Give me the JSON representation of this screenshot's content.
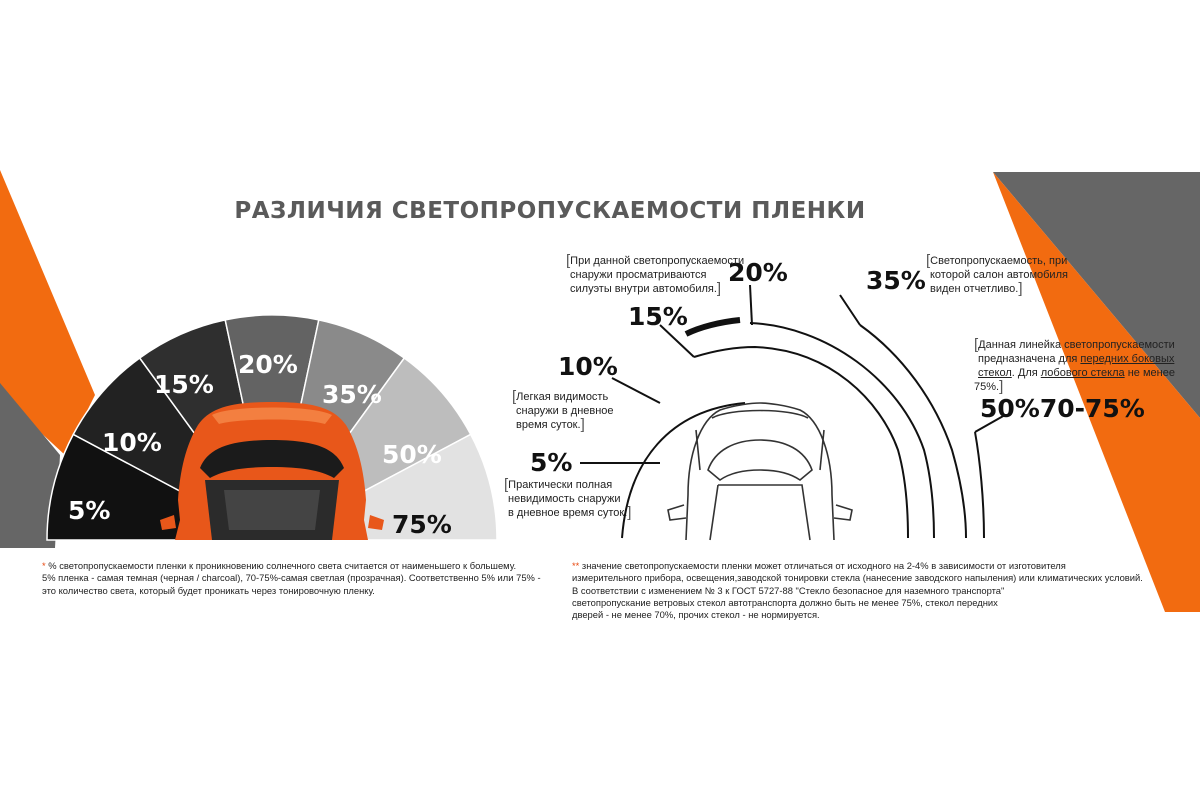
{
  "title": "РАЗЛИЧИЯ СВЕТОПРОПУСКАЕМОСТИ ПЛЕНКИ",
  "colors": {
    "accent_orange": "#f26b10",
    "accent_gray": "#666666",
    "title_gray": "#5a5a5a",
    "segment_5": "#111111",
    "segment_10": "#222222",
    "segment_15": "#2f2f2f",
    "segment_20": "#636363",
    "segment_35": "#8a8a8a",
    "segment_50": "#bdbdbd",
    "segment_75": "#e2e2e2"
  },
  "fan": {
    "segments": [
      {
        "label": "5%",
        "value": 5
      },
      {
        "label": "10%",
        "value": 10
      },
      {
        "label": "15%",
        "value": 15
      },
      {
        "label": "20%",
        "value": 20
      },
      {
        "label": "35%",
        "value": 35
      },
      {
        "label": "50%",
        "value": 50
      },
      {
        "label": "75%",
        "value": 75
      }
    ],
    "car_image": "orange-car-top-view"
  },
  "diagram": {
    "car_image": "car-outline-top-view",
    "levels": {
      "p5": "5%",
      "p10": "10%",
      "p15": "15%",
      "p20": "20%",
      "p35": "35%",
      "p50_75": "50%70-75%"
    },
    "notes": {
      "n20": {
        "line1": "При данной светопропускаемости",
        "line2": "снаружи просматриваются",
        "line3": "силуэты внутри автомобиля."
      },
      "n35": {
        "line1": "Светопропускаемость, при",
        "line2": "которой салон автомобиля",
        "line3": "виден отчетливо."
      },
      "n50": {
        "line1": "Данная линейка светопропускаемости",
        "line2_a": "предназначена для ",
        "line2_u": "передних боковых",
        "line3_u1": "стекол",
        "line3_b": ". Для ",
        "line3_u2": "лобового стекла",
        "line3_c": " не менее 75%."
      },
      "n10": {
        "line1": "Легкая видимость",
        "line2": "снаружи в дневное",
        "line3": "время суток."
      },
      "n5": {
        "line1": "Практически полная",
        "line2": "невидимость снаружи",
        "line3": "в дневное время суток."
      }
    }
  },
  "footnotes": {
    "left": {
      "star": "*",
      "line1": " % светопропускаемости пленки к проникновению солнечного света считается от наименьшего к большему.",
      "line2": "5% пленка - самая темная (черная / charcoal), 70-75%-самая светлая (прозрачная). Соответственно 5% или 75% -",
      "line3": "это количество света, который будет проникать через тонировочную пленку."
    },
    "right": {
      "star": "**",
      "line1": " значение светопропускаемости пленки может отличаться от исходного на 2-4% в зависимости от изготовителя",
      "line2": "измерительного прибора, освещения,заводской тонировки стекла (нанесение заводского напыления) или климатических условий.",
      "line3": "В соответствии с изменением № 3 к ГОСТ 5727-88 \"Стекло безопасное для наземного транспорта\"",
      "line4": "светопропускание ветровых стекол автотранспорта должно быть не менее 75%, стекол передних",
      "line5": "дверей - не менее 70%, прочих стекол - не нормируется."
    }
  }
}
